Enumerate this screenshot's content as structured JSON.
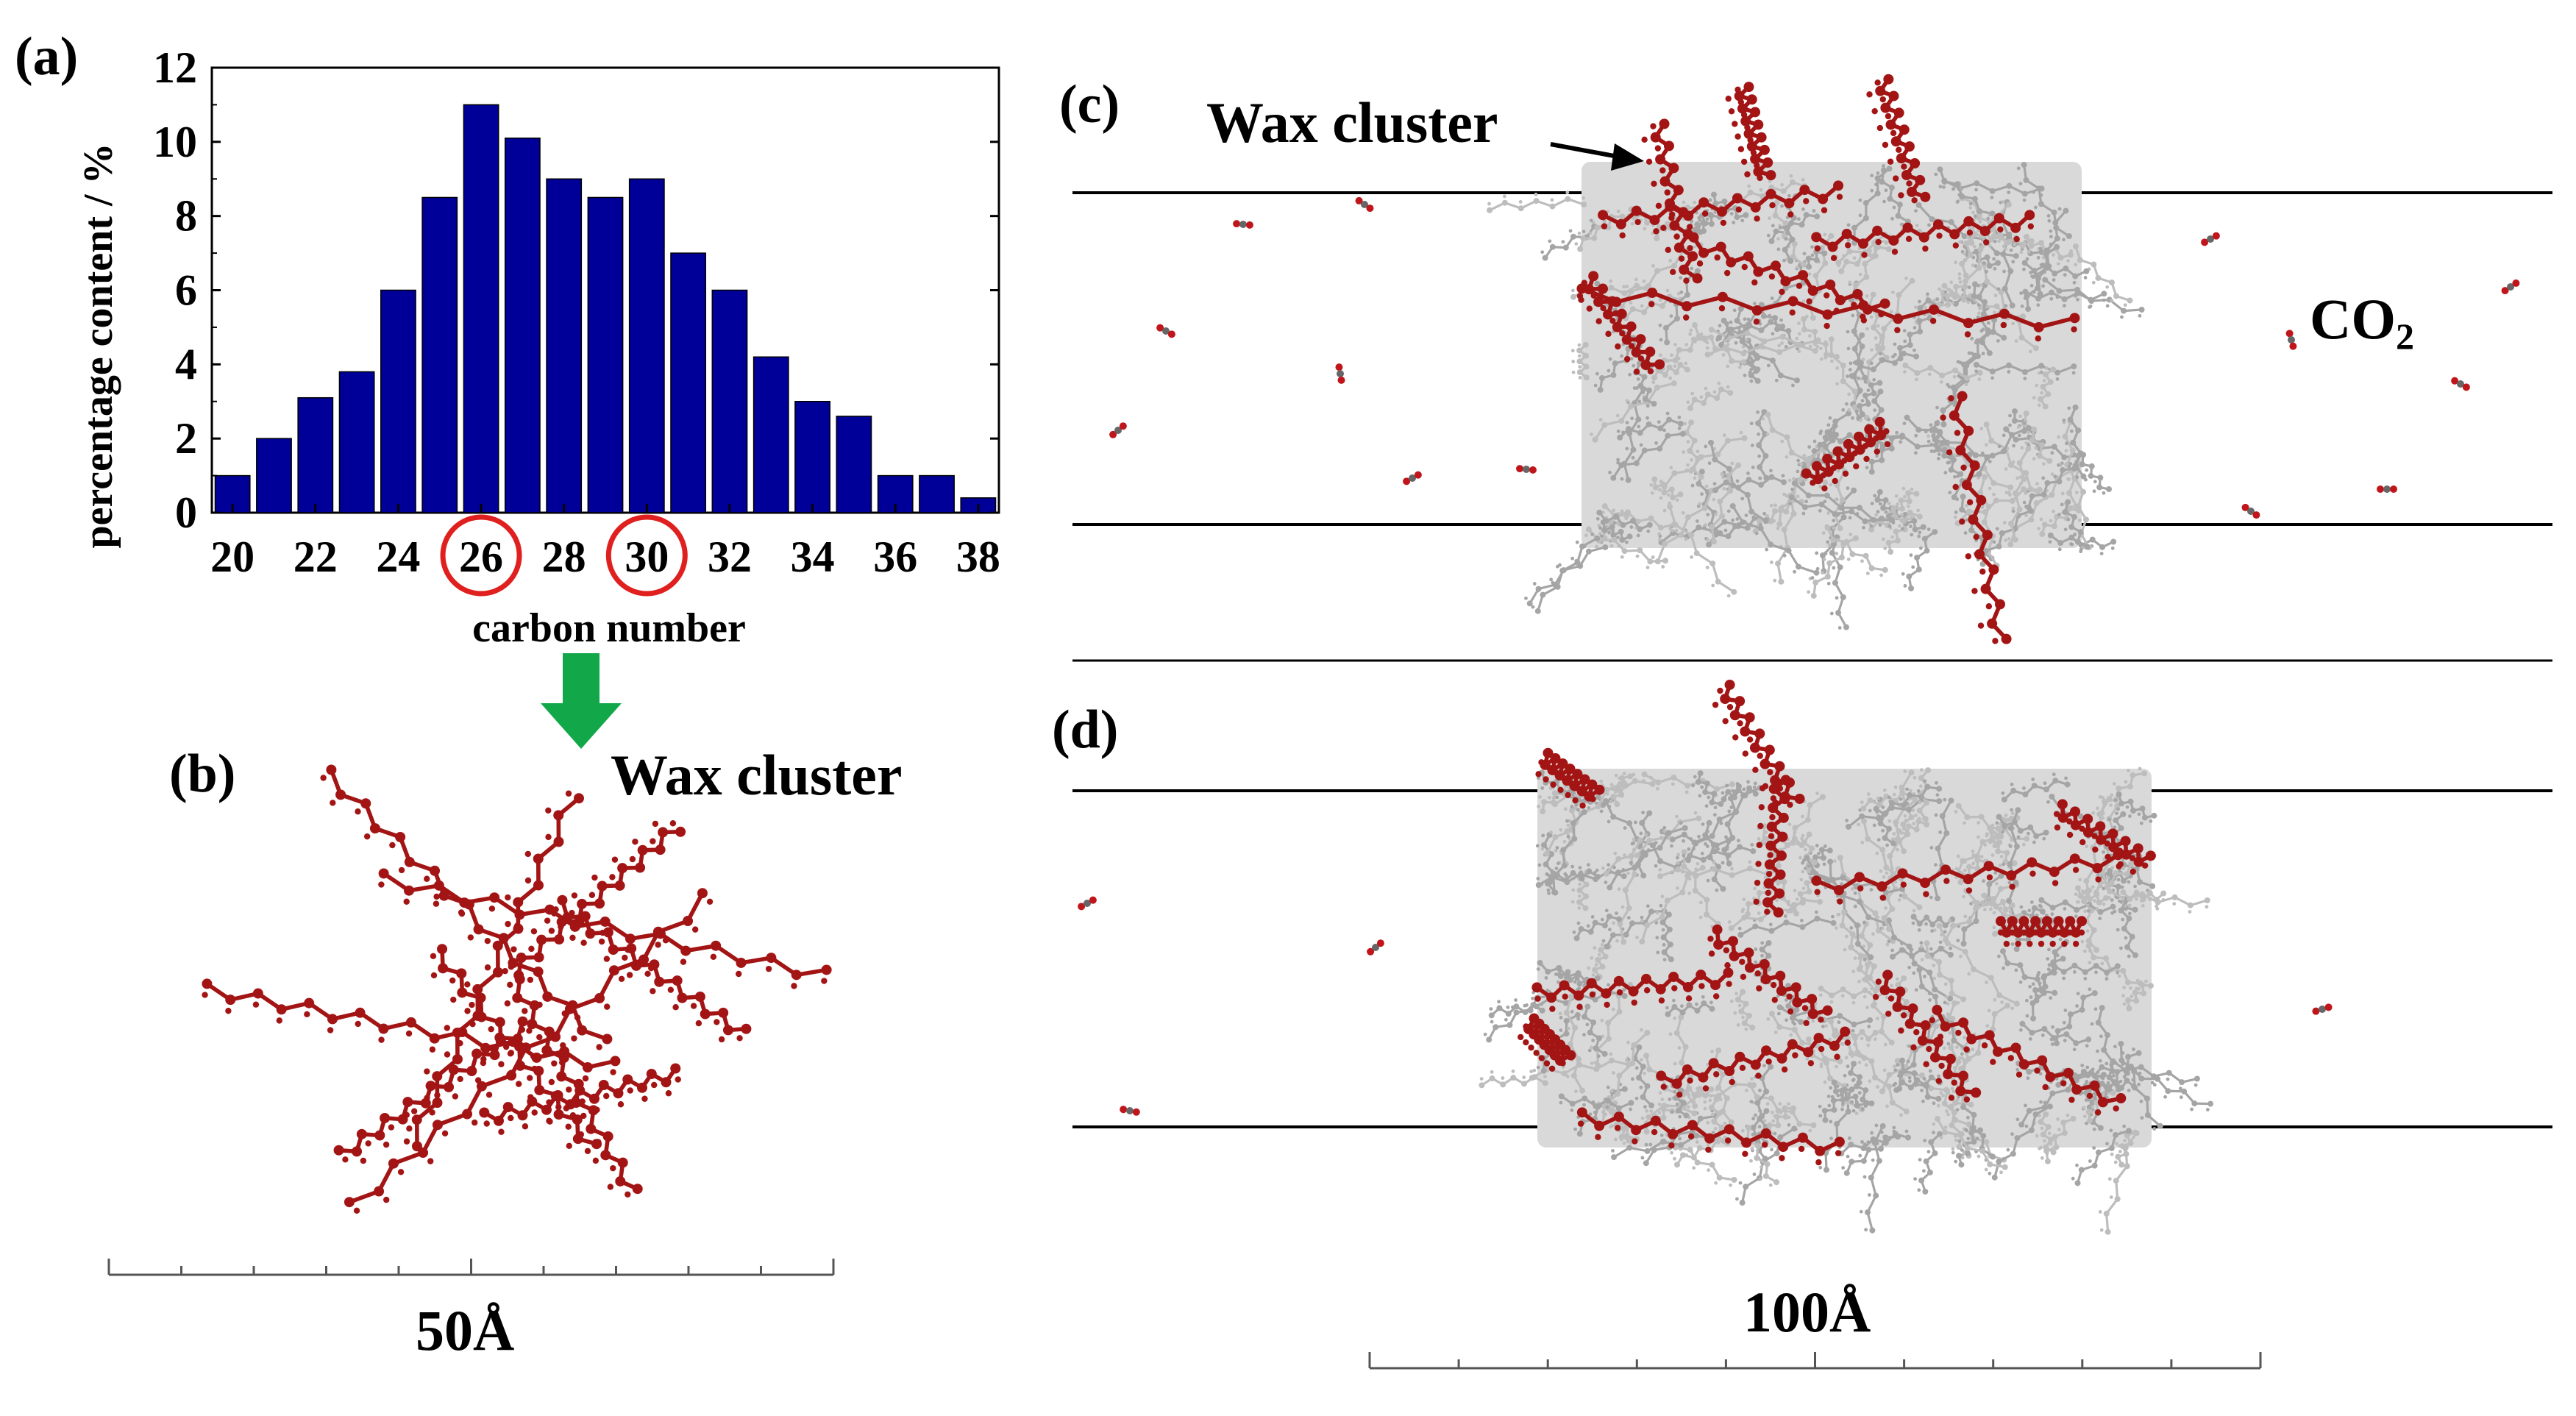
{
  "panels": {
    "a": "(a)",
    "b": "(b)",
    "c": "(c)",
    "d": "(d)"
  },
  "chart_data": {
    "type": "bar",
    "categories": [
      "20",
      "21",
      "22",
      "23",
      "24",
      "25",
      "26",
      "27",
      "28",
      "29",
      "30",
      "31",
      "32",
      "33",
      "34",
      "35",
      "36",
      "37",
      "38"
    ],
    "values": [
      1,
      2,
      3.1,
      3.8,
      6,
      8.5,
      11,
      10.1,
      9,
      8.5,
      9,
      7,
      6,
      4.2,
      3,
      2.6,
      1,
      1,
      0.4
    ],
    "xticks": [
      "20",
      "22",
      "24",
      "26",
      "28",
      "30",
      "32",
      "34",
      "36",
      "38"
    ],
    "yticks": [
      "0",
      "2",
      "4",
      "6",
      "8",
      "10",
      "12"
    ],
    "ylim": [
      0,
      12
    ],
    "xlim": [
      19.5,
      38.5
    ],
    "xlabel": "carbon number",
    "ylabel": "percentage content / %",
    "highlighted": [
      "26",
      "30"
    ],
    "bar_color": "#000099",
    "highlight_color": "#e0201f"
  },
  "labels": {
    "wax_cluster_b": "Wax cluster",
    "wax_cluster_c": "Wax cluster",
    "co2_main": "CO",
    "co2_sub": "2",
    "scale_50": "50Å",
    "scale_100": "100Å"
  },
  "colors": {
    "wax": "#a31515",
    "alkane": "#c8c8c8",
    "arrow": "#12a84a",
    "line": "#000000"
  }
}
